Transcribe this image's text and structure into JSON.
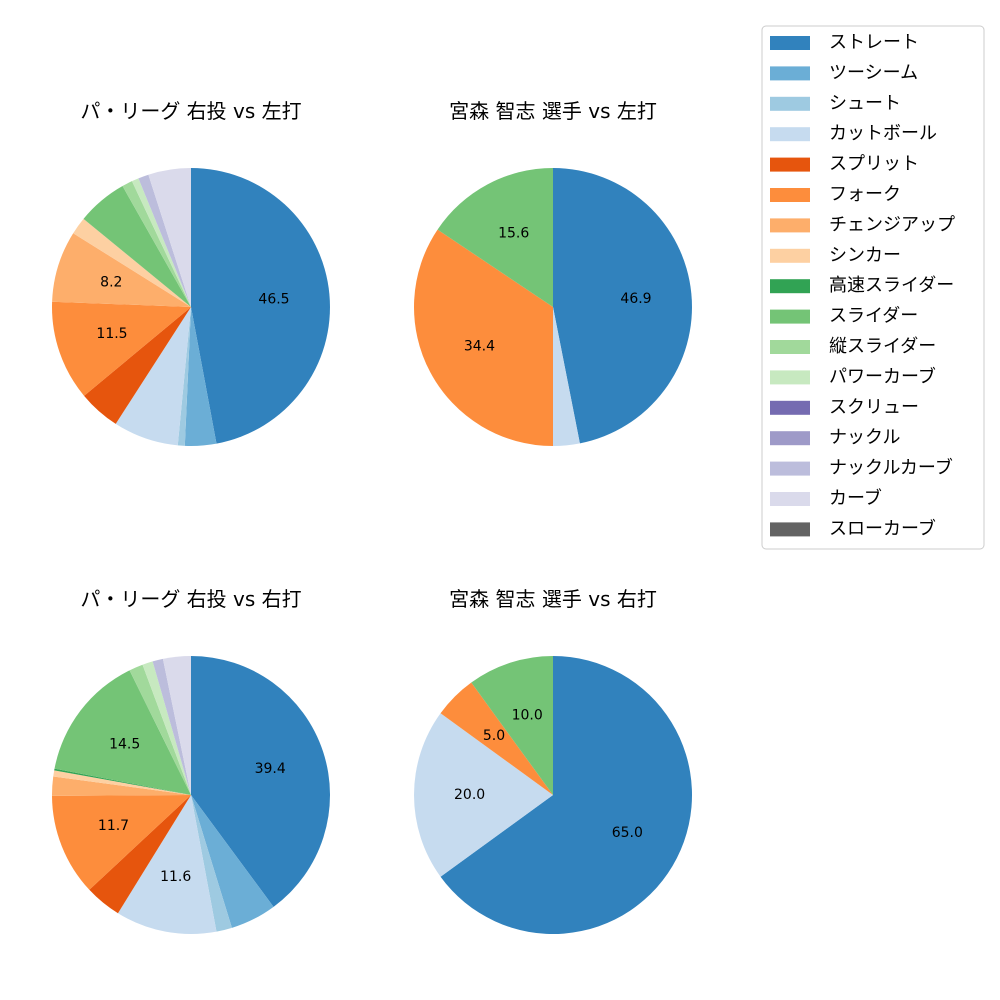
{
  "legend": {
    "items": [
      {
        "label": "ストレート",
        "color": "#3182bd"
      },
      {
        "label": "ツーシーム",
        "color": "#6baed6"
      },
      {
        "label": "シュート",
        "color": "#9ecae1"
      },
      {
        "label": "カットボール",
        "color": "#c6dbef"
      },
      {
        "label": "スプリット",
        "color": "#e6550d"
      },
      {
        "label": "フォーク",
        "color": "#fd8d3c"
      },
      {
        "label": "チェンジアップ",
        "color": "#fdae6b"
      },
      {
        "label": "シンカー",
        "color": "#fdd0a2"
      },
      {
        "label": "高速スライダー",
        "color": "#31a354"
      },
      {
        "label": "スライダー",
        "color": "#74c476"
      },
      {
        "label": "縦スライダー",
        "color": "#a1d99b"
      },
      {
        "label": "パワーカーブ",
        "color": "#c7e9c0"
      },
      {
        "label": "スクリュー",
        "color": "#756bb1"
      },
      {
        "label": "ナックル",
        "color": "#9e9ac8"
      },
      {
        "label": "ナックルカーブ",
        "color": "#bcbddc"
      },
      {
        "label": "カーブ",
        "color": "#dadaeb"
      },
      {
        "label": "スローカーブ",
        "color": "#636363"
      }
    ]
  },
  "chart_data": [
    {
      "type": "pie",
      "title": "パ・リーグ 右投 vs 左打",
      "slices": [
        {
          "category": "ストレート",
          "value": 46.5,
          "label": "46.5"
        },
        {
          "category": "ツーシーム",
          "value": 3.6
        },
        {
          "category": "シュート",
          "value": 0.8
        },
        {
          "category": "カットボール",
          "value": 7.5
        },
        {
          "category": "スプリット",
          "value": 4.8
        },
        {
          "category": "フォーク",
          "value": 11.5,
          "label": "11.5"
        },
        {
          "category": "チェンジアップ",
          "value": 8.2,
          "label": "8.2"
        },
        {
          "category": "シンカー",
          "value": 2.0
        },
        {
          "category": "スライダー",
          "value": 5.8
        },
        {
          "category": "縦スライダー",
          "value": 1.2
        },
        {
          "category": "パワーカーブ",
          "value": 0.8
        },
        {
          "category": "ナックルカーブ",
          "value": 1.2
        },
        {
          "category": "カーブ",
          "value": 4.9
        }
      ]
    },
    {
      "type": "pie",
      "title": "宮森 智志 選手 vs 左打",
      "slices": [
        {
          "category": "ストレート",
          "value": 46.9,
          "label": "46.9"
        },
        {
          "category": "カットボール",
          "value": 3.1
        },
        {
          "category": "フォーク",
          "value": 34.4,
          "label": "34.4"
        },
        {
          "category": "スライダー",
          "value": 15.6,
          "label": "15.6"
        }
      ]
    },
    {
      "type": "pie",
      "title": "パ・リーグ 右投 vs 右打",
      "slices": [
        {
          "category": "ストレート",
          "value": 39.4,
          "label": "39.4"
        },
        {
          "category": "ツーシーム",
          "value": 5.3
        },
        {
          "category": "シュート",
          "value": 1.8
        },
        {
          "category": "カットボール",
          "value": 11.6,
          "label": "11.6"
        },
        {
          "category": "スプリット",
          "value": 4.2
        },
        {
          "category": "フォーク",
          "value": 11.7,
          "label": "11.7"
        },
        {
          "category": "チェンジアップ",
          "value": 2.2
        },
        {
          "category": "シンカー",
          "value": 0.7
        },
        {
          "category": "高速スライダー",
          "value": 0.2
        },
        {
          "category": "スライダー",
          "value": 14.5,
          "label": "14.5"
        },
        {
          "category": "縦スライダー",
          "value": 1.6
        },
        {
          "category": "パワーカーブ",
          "value": 1.2
        },
        {
          "category": "ナックルカーブ",
          "value": 1.2
        },
        {
          "category": "カーブ",
          "value": 3.2
        }
      ]
    },
    {
      "type": "pie",
      "title": "宮森 智志 選手 vs 右打",
      "slices": [
        {
          "category": "ストレート",
          "value": 65.0,
          "label": "65.0"
        },
        {
          "category": "カットボール",
          "value": 20.0,
          "label": "20.0"
        },
        {
          "category": "フォーク",
          "value": 5.0,
          "label": "5.0"
        },
        {
          "category": "スライダー",
          "value": 10.0,
          "label": "10.0"
        }
      ]
    }
  ]
}
